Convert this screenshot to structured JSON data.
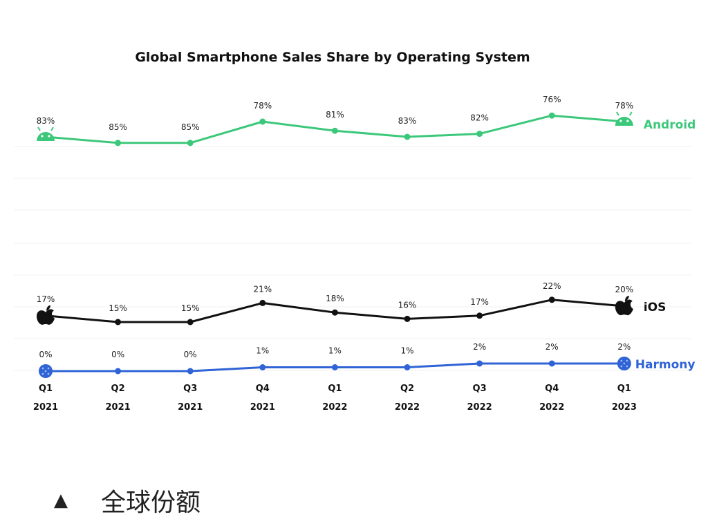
{
  "chart_data": {
    "type": "line",
    "title": "Global Smartphone Sales Share by Operating System",
    "categories": [
      "Q1 2021",
      "Q2 2021",
      "Q3 2021",
      "Q4 2021",
      "Q1 2022",
      "Q2 2022",
      "Q3 2022",
      "Q4 2022",
      "Q1 2023"
    ],
    "tick_quarters": [
      "Q1",
      "Q2",
      "Q3",
      "Q4",
      "Q1",
      "Q2",
      "Q3",
      "Q4",
      "Q1"
    ],
    "tick_years": [
      "2021",
      "2021",
      "2021",
      "2021",
      "2022",
      "2022",
      "2022",
      "2022",
      "2023"
    ],
    "series": [
      {
        "name": "Android",
        "color": "#3cc87a",
        "values": [
          83,
          85,
          85,
          78,
          81,
          83,
          82,
          76,
          78
        ],
        "labels": [
          "83%",
          "85%",
          "85%",
          "78%",
          "81%",
          "83%",
          "82%",
          "76%",
          "78%"
        ],
        "icon": "android-icon"
      },
      {
        "name": "iOS",
        "color": "#111111",
        "values": [
          17,
          15,
          15,
          21,
          18,
          16,
          17,
          22,
          20
        ],
        "labels": [
          "17%",
          "15%",
          "15%",
          "21%",
          "18%",
          "16%",
          "17%",
          "22%",
          "20%"
        ],
        "icon": "apple-icon"
      },
      {
        "name": "Harmony",
        "color": "#2f63d6",
        "values": [
          0,
          0,
          0,
          1,
          1,
          1,
          2,
          2,
          2
        ],
        "labels": [
          "0%",
          "0%",
          "0%",
          "1%",
          "1%",
          "1%",
          "2%",
          "2%",
          "2%"
        ],
        "icon": "harmony-icon"
      }
    ],
    "ylim": [
      0,
      100
    ],
    "grid": false,
    "legend": "end-of-line labels"
  },
  "caption": {
    "icon": "triangle-up-icon",
    "triangle": "▲",
    "text": "全球份额"
  }
}
